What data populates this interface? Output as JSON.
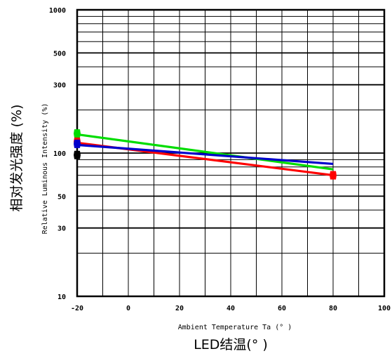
{
  "chart_data": {
    "type": "line",
    "title": "",
    "xlabel": "Ambient Temperature Ta (° )",
    "xlabel_cn": "LED结温(° )",
    "ylabel": "Relative Luminous Intensity (%)",
    "ylabel_cn": "相对发光强度 (%)",
    "xlim": [
      -20,
      100
    ],
    "ylim": [
      10,
      1000
    ],
    "yscale": "log",
    "grid": true,
    "x_ticks": [
      "-20",
      "0",
      "20",
      "40",
      "60",
      "80",
      "100"
    ],
    "x_tick_values": [
      -20,
      0,
      20,
      40,
      60,
      80,
      100
    ],
    "y_ticks": [
      "10",
      "30",
      "50",
      "100",
      "300",
      "500",
      "1000"
    ],
    "y_tick_values": [
      10,
      30,
      50,
      100,
      300,
      500,
      1000
    ],
    "series": [
      {
        "color": "#00dd00",
        "x": [
          -20,
          80
        ],
        "y": [
          135,
          77
        ],
        "markers": [
          {
            "x": -20,
            "y": 137
          }
        ]
      },
      {
        "color": "#ff0000",
        "x": [
          -20,
          80
        ],
        "y": [
          118,
          70
        ],
        "markers": [
          {
            "x": -20,
            "y": 120
          },
          {
            "x": 80,
            "y": 70
          }
        ]
      },
      {
        "color": "#0000cc",
        "x": [
          -20,
          80
        ],
        "y": [
          114,
          84
        ],
        "markers": [
          {
            "x": -20,
            "y": 116
          }
        ]
      },
      {
        "color": "#000000",
        "x": [],
        "y": [],
        "markers": [
          {
            "x": -20,
            "y": 97
          }
        ]
      }
    ]
  }
}
